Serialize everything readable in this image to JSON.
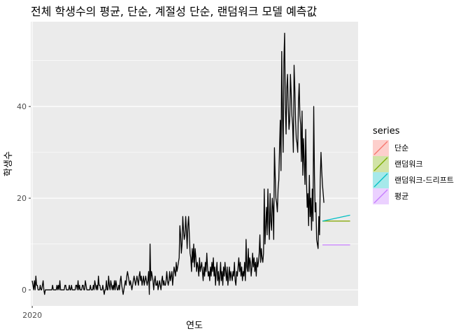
{
  "chart_data": {
    "type": "line",
    "title": "전체 학생수의 평균, 단순, 계절성 단순, 랜덤워크 모델 예측값",
    "xlabel": "연도",
    "ylabel": "학생수",
    "x_ticks": [
      {
        "value": 0,
        "label": "2020"
      }
    ],
    "y_ticks": [
      0,
      20,
      40
    ],
    "xlim": [
      -2,
      448
    ],
    "ylim": [
      -3.5,
      58.5
    ],
    "grid": true,
    "legend": {
      "title": "series",
      "placement": "right",
      "entries": [
        {
          "label": "단순",
          "color": "#F8766D"
        },
        {
          "label": "랜덤워크",
          "color": "#7CAE00"
        },
        {
          "label": "랜덤워크-드리프트",
          "color": "#00BFC4"
        },
        {
          "label": "평균",
          "color": "#C77CFF"
        }
      ]
    },
    "actual": {
      "color": "#000000",
      "x_start": 0,
      "x_step": 1,
      "values": [
        2,
        1,
        0,
        2,
        0,
        3,
        1,
        1,
        0,
        0,
        0,
        1,
        0,
        0,
        1,
        2,
        0,
        -1,
        0,
        0,
        0,
        0,
        0,
        0,
        0,
        0,
        0,
        0,
        1,
        0,
        0,
        0,
        0,
        0,
        1,
        0,
        1,
        0,
        2,
        0,
        0,
        0,
        0,
        0,
        0,
        1,
        1,
        0,
        0,
        0,
        0,
        1,
        0,
        0,
        1,
        0,
        0,
        0,
        0,
        0,
        1,
        1,
        0,
        2,
        0,
        1,
        0,
        0,
        0,
        1,
        1,
        0,
        0,
        2,
        1,
        0,
        0,
        0,
        0,
        0,
        1,
        0,
        0,
        0,
        1,
        0,
        2,
        1,
        0,
        1,
        0,
        3,
        1,
        1,
        0,
        0,
        0,
        1,
        0,
        -1,
        0,
        0,
        2,
        0,
        0,
        3,
        1,
        0,
        2,
        1,
        0,
        1,
        0,
        2,
        0,
        2,
        1,
        0,
        0,
        1,
        0,
        2,
        3,
        1,
        0,
        -1,
        0,
        1,
        2,
        1,
        3,
        4,
        3,
        2,
        1,
        2,
        1,
        0,
        1,
        2,
        3,
        2,
        1,
        2,
        3,
        2,
        1,
        3,
        4,
        2,
        3,
        1,
        2,
        3,
        1,
        2,
        3,
        2,
        1,
        2,
        4,
        -1,
        10,
        2,
        4,
        3,
        2,
        0,
        2,
        3,
        1,
        1,
        2,
        0,
        1,
        2,
        1,
        0,
        2,
        3,
        1,
        2,
        1,
        1,
        2,
        4,
        2,
        1,
        2,
        4,
        2,
        3,
        4,
        1,
        3,
        5,
        4,
        3,
        6,
        4,
        5,
        6,
        7,
        14,
        12,
        8,
        10,
        16,
        13,
        11,
        12,
        16,
        13,
        9,
        14,
        16,
        12,
        8,
        7,
        4,
        9,
        6,
        10,
        5,
        9,
        7,
        4,
        6,
        5,
        3,
        7,
        4,
        5,
        6,
        4,
        2,
        5,
        3,
        6,
        4,
        8,
        5,
        3,
        4,
        2,
        5,
        3,
        6,
        4,
        7,
        3,
        5,
        1,
        4,
        6,
        2,
        4,
        1,
        3,
        6,
        2,
        4,
        1,
        5,
        3,
        6,
        4,
        2,
        5,
        1,
        3,
        5,
        2,
        4,
        3,
        2,
        4,
        3,
        6,
        2,
        1,
        4,
        3,
        5,
        7,
        4,
        6,
        3,
        5,
        2,
        4,
        3,
        6,
        2,
        11,
        5,
        4,
        9,
        4,
        7,
        6,
        3,
        5,
        8,
        5,
        7,
        4,
        6,
        3,
        7,
        5,
        6,
        8,
        12,
        6,
        9,
        7,
        6,
        8,
        22,
        10,
        14,
        18,
        12,
        22,
        15,
        11,
        21,
        15,
        13,
        20,
        18,
        11,
        31,
        25,
        20,
        19,
        17,
        22,
        24,
        31,
        37,
        26,
        52,
        38,
        30,
        50,
        56,
        40,
        34,
        44,
        47,
        40,
        35,
        37,
        47,
        43,
        38,
        36,
        30,
        49,
        44,
        37,
        33,
        32,
        30,
        41,
        45,
        38,
        36,
        28,
        39,
        25,
        33,
        28,
        23,
        35,
        24,
        18,
        21,
        14,
        25,
        16,
        20,
        13,
        22,
        15,
        40,
        25,
        17,
        19,
        11,
        10,
        9,
        16,
        12,
        24,
        30,
        26,
        23,
        21,
        19
      ]
    },
    "forecasts": [
      {
        "name": "단순",
        "color": "#F8766D",
        "x": [
          399,
          437
        ],
        "y": [
          15,
          15
        ]
      },
      {
        "name": "랜덤워크",
        "color": "#7CAE00",
        "x": [
          399,
          437
        ],
        "y": [
          15,
          15
        ]
      },
      {
        "name": "랜덤워크-드리프트",
        "color": "#00BFC4",
        "x": [
          399,
          437
        ],
        "y": [
          15,
          16.3
        ]
      },
      {
        "name": "평균",
        "color": "#C77CFF",
        "x": [
          399,
          437
        ],
        "y": [
          9.8,
          9.8
        ]
      }
    ]
  }
}
